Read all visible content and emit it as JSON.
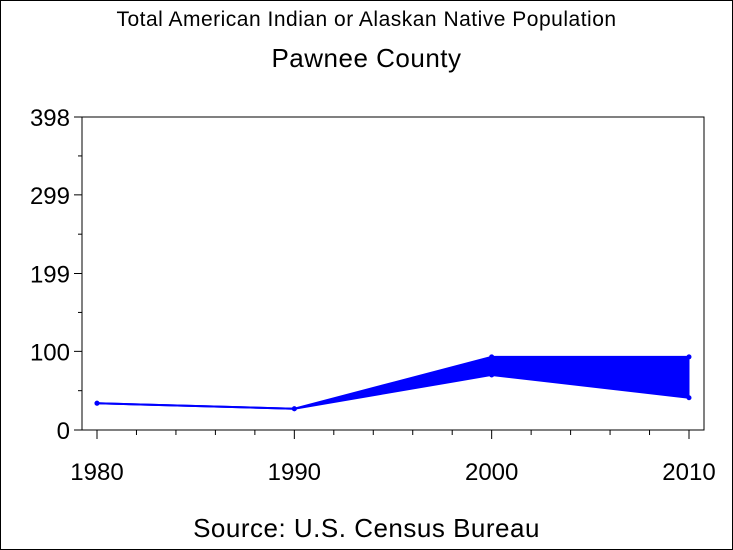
{
  "chart_data": {
    "type": "line",
    "title": "Total American Indian or Alaskan Native Population",
    "subtitle": "Pawnee County",
    "source": "Source: U.S. Census Bureau",
    "x": [
      1980,
      1990,
      2000,
      2010
    ],
    "x_tick_labels": [
      "1980",
      "1990",
      "2000",
      "2010"
    ],
    "y_tick_values": [
      0,
      100,
      199,
      299,
      398
    ],
    "y_tick_labels": [
      "0",
      "100",
      "199",
      "299",
      "398"
    ],
    "ylim": [
      0,
      398
    ],
    "xlim": [
      1980,
      2010
    ],
    "series": [
      {
        "values": [
          34,
          27,
          93,
          93
        ]
      },
      {
        "values": [
          34,
          27,
          70,
          41
        ]
      }
    ],
    "fill_between_series": true,
    "grid": false,
    "legend": "none",
    "color": "#0000ff"
  }
}
